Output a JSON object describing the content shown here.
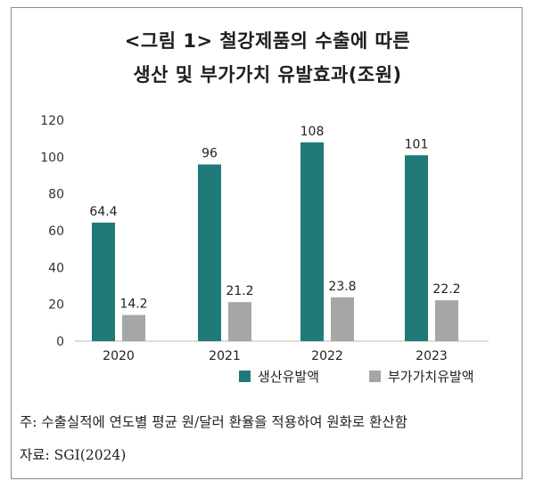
{
  "title_line1": "<그림 1> 철강제품의 수출에 따른",
  "title_line2": "생산 및 부가가치 유발효과(조원)",
  "note": "주: 수출실적에 연도별 평균 원/달러 환율을 적용하여 원화로 환산함",
  "source": "자료: SGI(2024)",
  "colors": {
    "production": "#1f7a78",
    "value_added": "#a6a6a6"
  },
  "chart_data": {
    "type": "bar",
    "categories": [
      "2020",
      "2021",
      "2022",
      "2023"
    ],
    "series": [
      {
        "name": "생산유발액",
        "values": [
          64.4,
          96,
          108,
          101
        ],
        "labels": [
          "64.4",
          "96",
          "108",
          "101"
        ]
      },
      {
        "name": "부가가치유발액",
        "values": [
          14.2,
          21.2,
          23.8,
          22.2
        ],
        "labels": [
          "14.2",
          "21.2",
          "23.8",
          "22.2"
        ]
      }
    ],
    "ylim": [
      0,
      120
    ],
    "yticks": [
      "0",
      "20",
      "40",
      "60",
      "80",
      "100",
      "120"
    ],
    "grid": false,
    "legend_position": "bottom"
  }
}
